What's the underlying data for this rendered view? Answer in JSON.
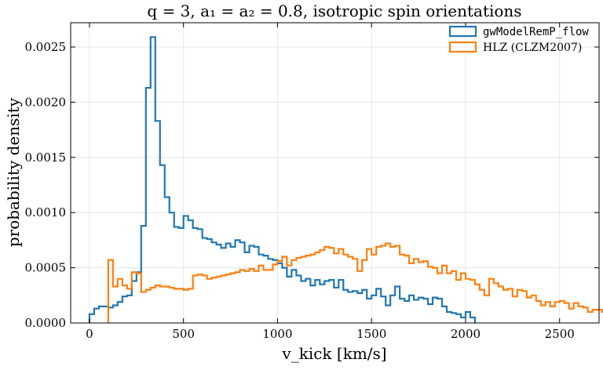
{
  "chart_data": {
    "type": "histogram",
    "title": "q = 3, a₁ = a₂ = 0.8, isotropic spin orientations",
    "xlabel": "v_kick [km/s]",
    "ylabel": "probability density",
    "xlim": [
      -100,
      2710
    ],
    "ylim": [
      0,
      0.00272
    ],
    "xticks": [
      0,
      500,
      1000,
      1500,
      2000,
      2500
    ],
    "xtick_labels": [
      "0",
      "500",
      "1000",
      "1500",
      "2000",
      "2500"
    ],
    "yticks": [
      0,
      0.0005,
      0.001,
      0.0015,
      0.002,
      0.0025
    ],
    "ytick_labels": [
      "0.0000",
      "0.0005",
      "0.0010",
      "0.0015",
      "0.0020",
      "0.0025"
    ],
    "grid": true,
    "legend_position": "top-right",
    "series": [
      {
        "name": "gwModelRemP_flow",
        "color": "#1f77b4",
        "bin_start": 0,
        "bin_width": 25,
        "values": [
          8e-05,
          0.00013,
          0.00015,
          0.00015,
          0.00014,
          0.00016,
          0.00019,
          0.00024,
          0.00025,
          0.00038,
          0.00046,
          0.00088,
          0.00213,
          0.00259,
          0.00183,
          0.00143,
          0.00114,
          0.001,
          0.00087,
          0.00086,
          0.00097,
          0.00093,
          0.00086,
          0.00085,
          0.00077,
          0.00076,
          0.00073,
          0.00071,
          0.00068,
          0.00072,
          0.00069,
          0.00075,
          0.00073,
          0.00064,
          0.0007,
          0.00069,
          0.00062,
          0.00061,
          0.00058,
          0.00057,
          0.00054,
          0.0005,
          0.00042,
          0.00048,
          0.00043,
          0.00038,
          0.0004,
          0.00034,
          0.00039,
          0.00035,
          0.00038,
          0.00039,
          0.00032,
          0.00039,
          0.0003,
          0.00028,
          0.00029,
          0.00027,
          0.0003,
          0.00022,
          0.00025,
          0.00031,
          0.00024,
          0.00016,
          0.00025,
          0.00033,
          0.00022,
          0.0002,
          0.00025,
          0.00021,
          0.00023,
          0.00022,
          0.00017,
          0.00023,
          0.00022,
          0.00015,
          0.0001,
          9e-05,
          8e-05,
          5e-05,
          0.0001,
          5e-05
        ]
      },
      {
        "name": "HLZ (CLZM2007)",
        "color": "#ff7f0e",
        "bin_start": 100,
        "bin_width": 25,
        "values": [
          0.00057,
          0.00033,
          0.0004,
          0.00034,
          0.00031,
          0.00046,
          0.00045,
          0.00028,
          0.0003,
          0.00032,
          0.00034,
          0.00033,
          0.00033,
          0.00032,
          0.00031,
          0.00031,
          0.0003,
          0.00031,
          0.00043,
          0.00044,
          0.00043,
          0.0004,
          0.00041,
          0.00042,
          0.00043,
          0.00044,
          0.00045,
          0.00046,
          0.00048,
          0.00047,
          0.00049,
          0.00047,
          0.00052,
          0.00048,
          0.00048,
          0.00053,
          0.00056,
          0.0006,
          0.00052,
          0.00057,
          0.00059,
          0.0006,
          0.00061,
          0.00062,
          0.00064,
          0.00066,
          0.00069,
          0.00068,
          0.00063,
          0.00067,
          0.00062,
          0.0006,
          0.00058,
          0.00047,
          0.00057,
          0.00067,
          0.00062,
          0.00069,
          0.0007,
          0.00072,
          0.00069,
          0.0007,
          0.00062,
          0.00061,
          0.00054,
          0.00058,
          0.00055,
          0.00056,
          0.00051,
          0.0005,
          0.00045,
          0.00052,
          0.00045,
          0.00047,
          0.00039,
          0.00045,
          0.0004,
          0.00039,
          0.00035,
          0.0003,
          0.00025,
          0.0004,
          0.00036,
          0.00033,
          0.0003,
          0.00031,
          0.00024,
          0.0003,
          0.00029,
          0.00023,
          0.00025,
          0.0002,
          0.00016,
          0.00019,
          0.00015,
          0.00019,
          0.0002,
          0.00018,
          0.00013,
          0.00018,
          0.00015,
          0.00014,
          0.0001,
          0.00012,
          0.00012,
          0.0001
        ]
      }
    ]
  }
}
